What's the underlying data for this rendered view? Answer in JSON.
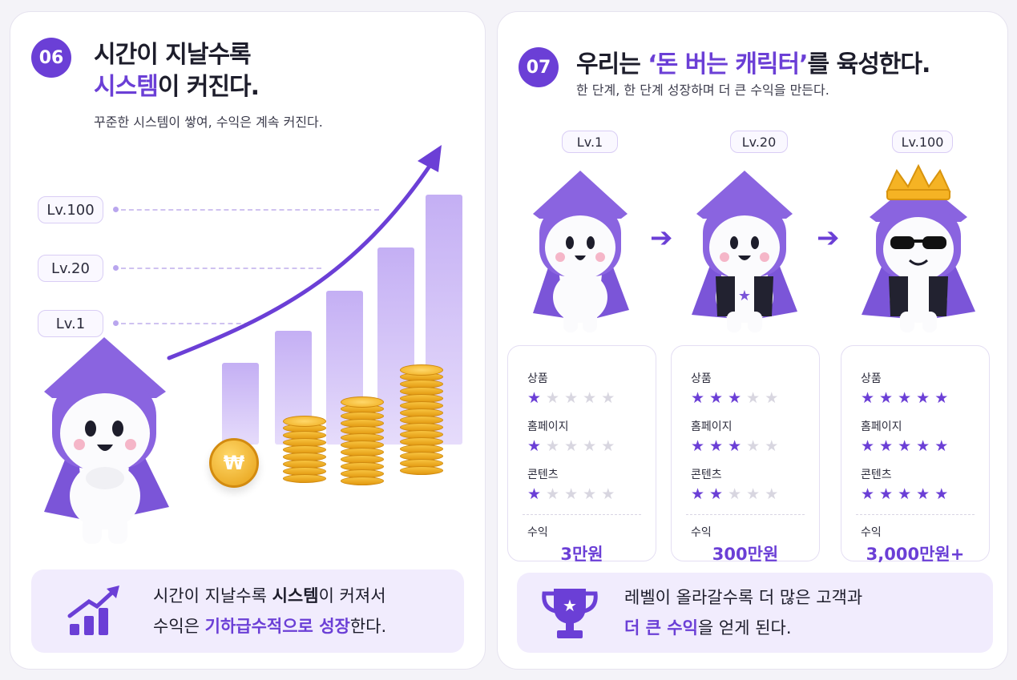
{
  "left": {
    "number": "06",
    "title_line1": "시간이 지날수록",
    "title_accent": "시스템",
    "title_rest": "이 커진다.",
    "subtitle": "꾸준한 시스템이 쌓여, 수익은 계속 커진다.",
    "levels": [
      "Lv.100",
      "Lv.20",
      "Lv.1"
    ],
    "coin_symbol": "₩",
    "bottom": {
      "line1_pre": "시간이 지날수록 ",
      "line1_bold": "시스템",
      "line1_post": "이 커져서",
      "line2_pre": "수익은 ",
      "line2_accent": "기하급수적으로 성장",
      "line2_post": "한다."
    }
  },
  "right": {
    "number": "07",
    "title_pre": "우리는 ",
    "title_accent": "‘돈 버는 캐릭터’",
    "title_post": "를 육성한다.",
    "subtitle": "한 단계, 한 단계 성장하며 더 큰 수익을 만든다.",
    "stages": [
      {
        "level": "Lv.1",
        "product_label": "상품",
        "product_stars": 1,
        "homepage_label": "홈페이지",
        "homepage_stars": 1,
        "content_label": "콘텐츠",
        "content_stars": 1,
        "income_label": "수익",
        "income": "3만원"
      },
      {
        "level": "Lv.20",
        "product_label": "상품",
        "product_stars": 3,
        "homepage_label": "홈페이지",
        "homepage_stars": 3,
        "content_label": "콘텐츠",
        "content_stars": 2,
        "income_label": "수익",
        "income": "300만원"
      },
      {
        "level": "Lv.100",
        "product_label": "상품",
        "product_stars": 5,
        "homepage_label": "홈페이지",
        "homepage_stars": 5,
        "content_label": "콘텐츠",
        "content_stars": 5,
        "income_label": "수익",
        "income": "3,000만원+"
      }
    ],
    "bottom": {
      "line1": "레벨이 올라갈수록 더 많은 고객과",
      "line2_accent": "더 큰 수익",
      "line2_post": "을 얻게 된다."
    }
  },
  "colors": {
    "accent": "#6b3fd6",
    "light": "#f1ecfd",
    "coin": "#f0ad1e"
  }
}
